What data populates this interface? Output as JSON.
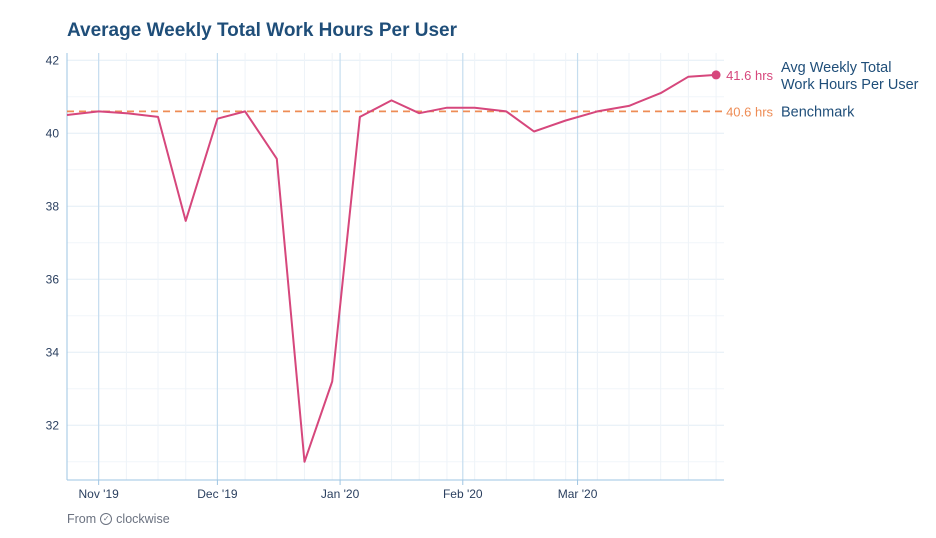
{
  "chart_data": {
    "type": "line",
    "title": "Average Weekly Total Work Hours Per User",
    "ylim": [
      30.5,
      42.2
    ],
    "yticks": [
      32,
      34,
      36,
      38,
      40,
      42
    ],
    "x_tick_labels": [
      "Nov '19",
      "Dec '19",
      "Jan '20",
      "Feb '20",
      "Mar '20"
    ],
    "x_tick_dates": [
      "2019-11-01",
      "2019-12-01",
      "2020-01-01",
      "2020-02-01",
      "2020-03-01"
    ],
    "xlim": [
      "2019-10-24",
      "2020-04-07"
    ],
    "grid": true,
    "series": [
      {
        "name": "Avg Weekly Total Work Hours Per User",
        "color": "#d6477c",
        "x": [
          "2019-10-24",
          "2019-11-01",
          "2019-11-08",
          "2019-11-16",
          "2019-11-23",
          "2019-12-01",
          "2019-12-08",
          "2019-12-16",
          "2019-12-23",
          "2019-12-30",
          "2020-01-06",
          "2020-01-14",
          "2020-01-21",
          "2020-01-28",
          "2020-02-04",
          "2020-02-12",
          "2020-02-19",
          "2020-02-27",
          "2020-03-06",
          "2020-03-14",
          "2020-03-22",
          "2020-03-29",
          "2020-04-05"
        ],
        "y": [
          40.5,
          40.6,
          40.55,
          40.45,
          37.6,
          40.4,
          40.6,
          39.3,
          31.0,
          33.2,
          40.45,
          40.9,
          40.55,
          40.7,
          40.7,
          40.6,
          40.05,
          40.35,
          40.6,
          40.75,
          41.1,
          41.55,
          41.6
        ],
        "end_label": "41.6 hrs"
      },
      {
        "name": "Benchmark",
        "color": "#ee8c55",
        "dashed": true,
        "value": 40.6,
        "end_label": "40.6 hrs"
      }
    ],
    "legend_labels": {
      "avg_line1": "Avg Weekly Total",
      "avg_line2": "Work Hours Per User",
      "benchmark": "Benchmark"
    }
  },
  "footer": {
    "from_text": "From",
    "brand": "clockwise"
  }
}
